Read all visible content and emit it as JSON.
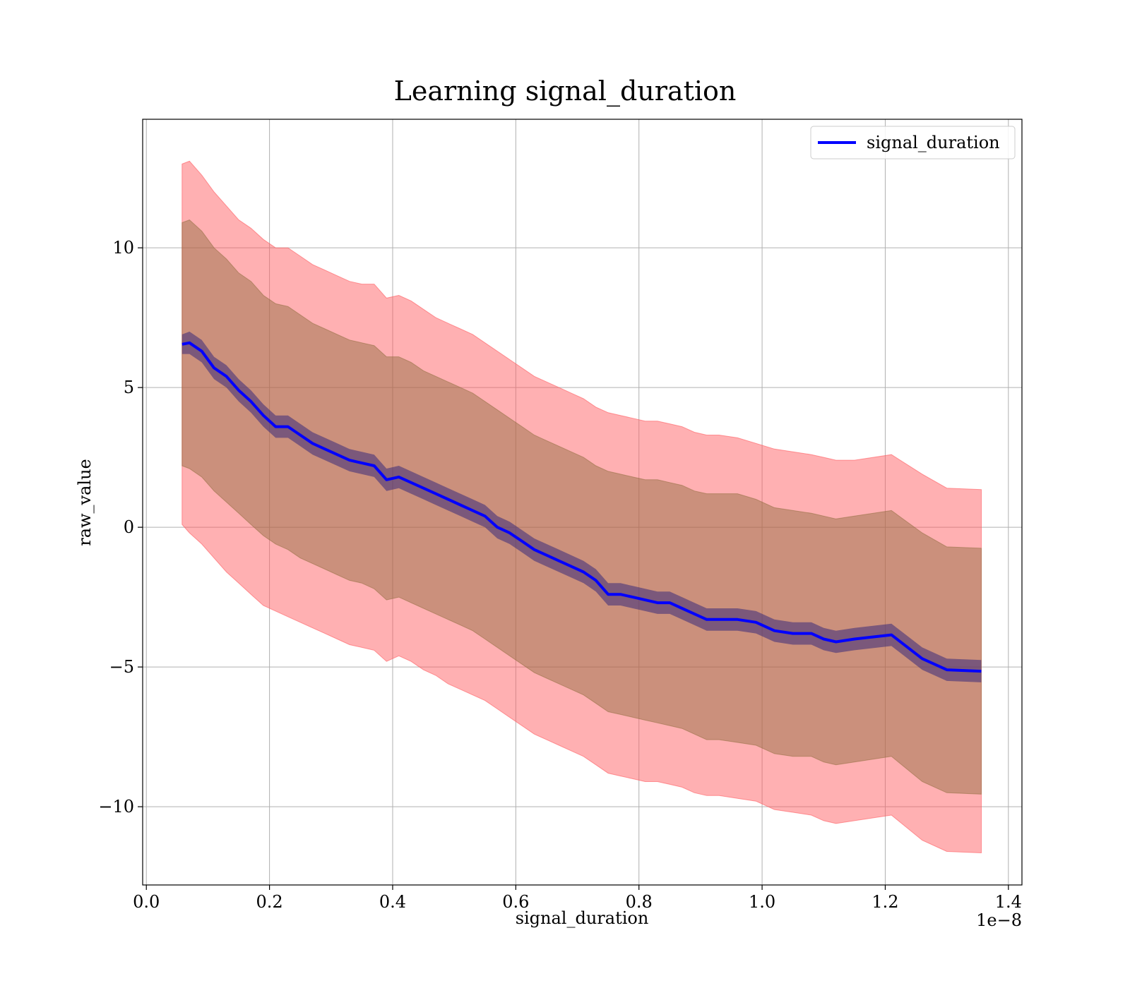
{
  "chart_data": {
    "type": "area",
    "title": "Learning signal_duration",
    "xlabel": "signal_duration",
    "ylabel": "raw_value",
    "x_offset_text": "1e−8",
    "xlim": [
      -0.006,
      1.422
    ],
    "ylim": [
      -12.8,
      14.6
    ],
    "x_ticks": [
      0.0,
      0.2,
      0.4,
      0.6,
      0.8,
      1.0,
      1.2,
      1.4
    ],
    "x_tick_labels": [
      "0.0",
      "0.2",
      "0.4",
      "0.6",
      "0.8",
      "1.0",
      "1.2",
      "1.4"
    ],
    "y_ticks": [
      10,
      5,
      0,
      -5,
      -10
    ],
    "y_tick_labels": [
      "10",
      "5",
      "0",
      "−5",
      "−10"
    ],
    "grid": true,
    "legend": {
      "position": "top-right",
      "entries": [
        "signal_duration"
      ]
    },
    "colors": {
      "mean_line": "#0000ff",
      "outer_band": "#ff5a5f",
      "middle_band": "#8b6a3a",
      "inner_band": "#3a2a7a"
    },
    "x": [
      0.058,
      0.07,
      0.09,
      0.11,
      0.13,
      0.15,
      0.17,
      0.19,
      0.21,
      0.23,
      0.25,
      0.27,
      0.29,
      0.31,
      0.33,
      0.35,
      0.37,
      0.39,
      0.41,
      0.43,
      0.45,
      0.47,
      0.49,
      0.51,
      0.53,
      0.55,
      0.57,
      0.59,
      0.61,
      0.63,
      0.65,
      0.67,
      0.69,
      0.71,
      0.73,
      0.75,
      0.77,
      0.79,
      0.81,
      0.83,
      0.85,
      0.87,
      0.89,
      0.91,
      0.93,
      0.96,
      0.99,
      1.02,
      1.05,
      1.08,
      1.1,
      1.12,
      1.15,
      1.21,
      1.26,
      1.3,
      1.356
    ],
    "series": [
      {
        "name": "signal_duration",
        "mean": [
          6.55,
          6.6,
          6.3,
          5.7,
          5.4,
          4.9,
          4.5,
          4.0,
          3.6,
          3.6,
          3.3,
          3.0,
          2.8,
          2.6,
          2.4,
          2.3,
          2.2,
          1.7,
          1.8,
          1.6,
          1.4,
          1.2,
          1.0,
          0.8,
          0.6,
          0.4,
          0.0,
          -0.2,
          -0.5,
          -0.8,
          -1.0,
          -1.2,
          -1.4,
          -1.6,
          -1.9,
          -2.4,
          -2.4,
          -2.5,
          -2.6,
          -2.7,
          -2.7,
          -2.9,
          -3.1,
          -3.3,
          -3.3,
          -3.3,
          -3.4,
          -3.7,
          -3.8,
          -3.8,
          -4.0,
          -4.1,
          -4.0,
          -3.85,
          -4.7,
          -5.1,
          -5.15
        ],
        "outer_upper": [
          13.0,
          13.1,
          12.6,
          12.0,
          11.5,
          11.0,
          10.7,
          10.3,
          10.0,
          10.0,
          9.7,
          9.4,
          9.2,
          9.0,
          8.8,
          8.7,
          8.7,
          8.2,
          8.3,
          8.1,
          7.8,
          7.5,
          7.3,
          7.1,
          6.9,
          6.6,
          6.3,
          6.0,
          5.7,
          5.4,
          5.2,
          5.0,
          4.8,
          4.6,
          4.3,
          4.1,
          4.0,
          3.9,
          3.8,
          3.8,
          3.7,
          3.6,
          3.4,
          3.3,
          3.3,
          3.2,
          3.0,
          2.8,
          2.7,
          2.6,
          2.5,
          2.4,
          2.4,
          2.6,
          1.9,
          1.4,
          1.35
        ],
        "outer_lower": [
          0.1,
          -0.2,
          -0.6,
          -1.1,
          -1.6,
          -2.0,
          -2.4,
          -2.8,
          -3.0,
          -3.2,
          -3.4,
          -3.6,
          -3.8,
          -4.0,
          -4.2,
          -4.3,
          -4.4,
          -4.8,
          -4.6,
          -4.8,
          -5.1,
          -5.3,
          -5.6,
          -5.8,
          -6.0,
          -6.2,
          -6.5,
          -6.8,
          -7.1,
          -7.4,
          -7.6,
          -7.8,
          -8.0,
          -8.2,
          -8.5,
          -8.8,
          -8.9,
          -9.0,
          -9.1,
          -9.1,
          -9.2,
          -9.3,
          -9.5,
          -9.6,
          -9.6,
          -9.7,
          -9.8,
          -10.1,
          -10.2,
          -10.3,
          -10.5,
          -10.6,
          -10.5,
          -10.3,
          -11.2,
          -11.6,
          -11.65
        ],
        "middle_upper": [
          10.9,
          11.0,
          10.6,
          10.0,
          9.6,
          9.1,
          8.8,
          8.3,
          8.0,
          7.9,
          7.6,
          7.3,
          7.1,
          6.9,
          6.7,
          6.6,
          6.5,
          6.1,
          6.1,
          5.9,
          5.6,
          5.4,
          5.2,
          5.0,
          4.8,
          4.5,
          4.2,
          3.9,
          3.6,
          3.3,
          3.1,
          2.9,
          2.7,
          2.5,
          2.2,
          2.0,
          1.9,
          1.8,
          1.7,
          1.7,
          1.6,
          1.5,
          1.3,
          1.2,
          1.2,
          1.2,
          1.0,
          0.7,
          0.6,
          0.5,
          0.4,
          0.3,
          0.4,
          0.6,
          -0.2,
          -0.7,
          -0.75
        ],
        "middle_lower": [
          2.2,
          2.1,
          1.8,
          1.3,
          0.9,
          0.5,
          0.1,
          -0.3,
          -0.6,
          -0.8,
          -1.1,
          -1.3,
          -1.5,
          -1.7,
          -1.9,
          -2.0,
          -2.2,
          -2.6,
          -2.5,
          -2.7,
          -2.9,
          -3.1,
          -3.3,
          -3.5,
          -3.7,
          -4.0,
          -4.3,
          -4.6,
          -4.9,
          -5.2,
          -5.4,
          -5.6,
          -5.8,
          -6.0,
          -6.3,
          -6.6,
          -6.7,
          -6.8,
          -6.9,
          -7.0,
          -7.1,
          -7.2,
          -7.4,
          -7.6,
          -7.6,
          -7.7,
          -7.8,
          -8.1,
          -8.2,
          -8.2,
          -8.4,
          -8.5,
          -8.4,
          -8.2,
          -9.1,
          -9.5,
          -9.55
        ],
        "inner_upper": [
          6.9,
          7.0,
          6.7,
          6.1,
          5.8,
          5.3,
          4.9,
          4.4,
          4.0,
          4.0,
          3.7,
          3.4,
          3.2,
          3.0,
          2.8,
          2.7,
          2.6,
          2.1,
          2.2,
          2.0,
          1.8,
          1.6,
          1.4,
          1.2,
          1.0,
          0.8,
          0.4,
          0.2,
          -0.1,
          -0.4,
          -0.6,
          -0.8,
          -1.0,
          -1.2,
          -1.5,
          -2.0,
          -2.0,
          -2.1,
          -2.2,
          -2.3,
          -2.3,
          -2.5,
          -2.7,
          -2.9,
          -2.9,
          -2.9,
          -3.0,
          -3.3,
          -3.4,
          -3.4,
          -3.6,
          -3.7,
          -3.6,
          -3.45,
          -4.3,
          -4.7,
          -4.75
        ],
        "inner_lower": [
          6.2,
          6.2,
          5.9,
          5.3,
          5.0,
          4.5,
          4.1,
          3.6,
          3.2,
          3.2,
          2.9,
          2.6,
          2.4,
          2.2,
          2.0,
          1.9,
          1.8,
          1.3,
          1.4,
          1.2,
          1.0,
          0.8,
          0.6,
          0.4,
          0.2,
          0.0,
          -0.4,
          -0.6,
          -0.9,
          -1.2,
          -1.4,
          -1.6,
          -1.8,
          -2.0,
          -2.3,
          -2.8,
          -2.8,
          -2.9,
          -3.0,
          -3.1,
          -3.1,
          -3.3,
          -3.5,
          -3.7,
          -3.7,
          -3.7,
          -3.8,
          -4.1,
          -4.2,
          -4.2,
          -4.4,
          -4.5,
          -4.4,
          -4.25,
          -5.1,
          -5.5,
          -5.55
        ]
      }
    ]
  }
}
